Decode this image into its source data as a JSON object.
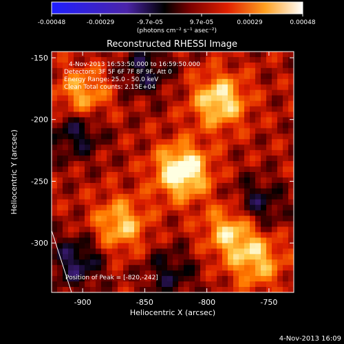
{
  "colorbar": {
    "ticks": [
      "-0.00048",
      "-0.00029",
      "-9.7e-05",
      "9.7e-05",
      "0.00029",
      "0.00048"
    ],
    "unit_label": "(photons cm⁻² s⁻¹ asec⁻²)"
  },
  "chart_data": {
    "type": "heatmap",
    "title": "Reconstructed RHESSI Image",
    "xlabel": "Heliocentric X (arcsec)",
    "ylabel": "Heliocentric Y (arcsec)",
    "xlim": [
      -925,
      -730
    ],
    "ylim": [
      -340,
      -145
    ],
    "x_ticks": [
      "-900",
      "-850",
      "-800",
      "-750"
    ],
    "y_ticks": [
      "-150",
      "-200",
      "-250",
      "-300"
    ],
    "colormap": [
      "#2020ff",
      "#5a2aa0",
      "#000000",
      "#8a0000",
      "#e02000",
      "#ff7000",
      "#ffc040",
      "#ffffe0"
    ],
    "peak": [
      -820,
      -242
    ],
    "hot_spots": [
      {
        "x": -820,
        "y": -242,
        "value": 1.0
      },
      {
        "x": -790,
        "y": -185,
        "value": 0.8
      },
      {
        "x": -780,
        "y": -290,
        "value": 0.7
      },
      {
        "x": -870,
        "y": -285,
        "value": 0.65
      },
      {
        "x": -900,
        "y": -180,
        "value": 0.6
      },
      {
        "x": -760,
        "y": -315,
        "value": 0.6
      }
    ],
    "cold_spots": [
      {
        "x": -905,
        "y": -210,
        "value": -0.5
      },
      {
        "x": -905,
        "y": -315,
        "value": -0.55
      },
      {
        "x": -760,
        "y": -270,
        "value": -0.5
      },
      {
        "x": -850,
        "y": -160,
        "value": -0.45
      },
      {
        "x": -830,
        "y": -325,
        "value": -0.4
      }
    ],
    "annotations": {
      "time": "4-Nov-2013 16:53:50.000 to 16:59:50.000",
      "detectors": "Detectors: 3F 5F 6F 7F 8F 9F, Att 0",
      "energy": "Energy Range: 25.0 - 50.0 keV",
      "clean": "Clean     Total counts: 2.15E+04",
      "peak_text": "Position of Peak = [-820,-242]"
    }
  },
  "timestamp": "4-Nov-2013 16:09"
}
